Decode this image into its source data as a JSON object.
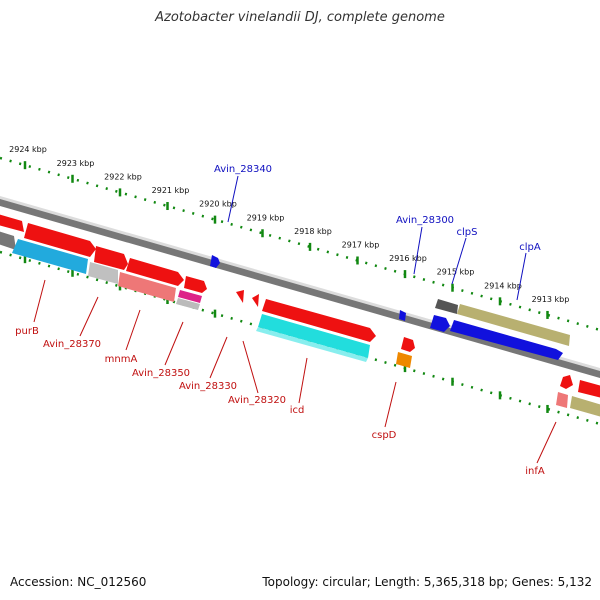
{
  "title": "Azotobacter vinelandii DJ, complete genome",
  "footer": {
    "accession": "Accession: NC_012560",
    "summary": "Topology: circular; Length: 5,365,318 bp; Genes: 5,132"
  },
  "ticks": [
    "2924 kbp",
    "2923 kbp",
    "2922 kbp",
    "2921 kbp",
    "2920 kbp",
    "2919 kbp",
    "2918 kbp",
    "2917 kbp",
    "2916 kbp",
    "2915 kbp",
    "2914 kbp",
    "2913 kbp"
  ],
  "labels": {
    "Avin_28340": "Avin_28340",
    "Avin_28300": "Avin_28300",
    "clpS": "clpS",
    "clpA": "clpA",
    "purB": "purB",
    "Avin_28370": "Avin_28370",
    "mnmA": "mnmA",
    "Avin_28350": "Avin_28350",
    "Avin_28330": "Avin_28330",
    "Avin_28320": "Avin_28320",
    "icd": "icd",
    "cspD": "cspD",
    "infA": "infA"
  },
  "colors": {
    "backbone": "#808080",
    "forward_label": "#1010c0",
    "reverse_label": "#c01010",
    "cds_red": "#ee1111",
    "cds_pink": "#ee7777",
    "cds_blue": "#1111dd",
    "cds_cyan": "#22bbdd",
    "cds_olive": "#b8b070",
    "cds_gray": "#888888",
    "cds_orange": "#ee8800",
    "cds_magenta": "#dd2288",
    "tick_green": "#118811"
  }
}
